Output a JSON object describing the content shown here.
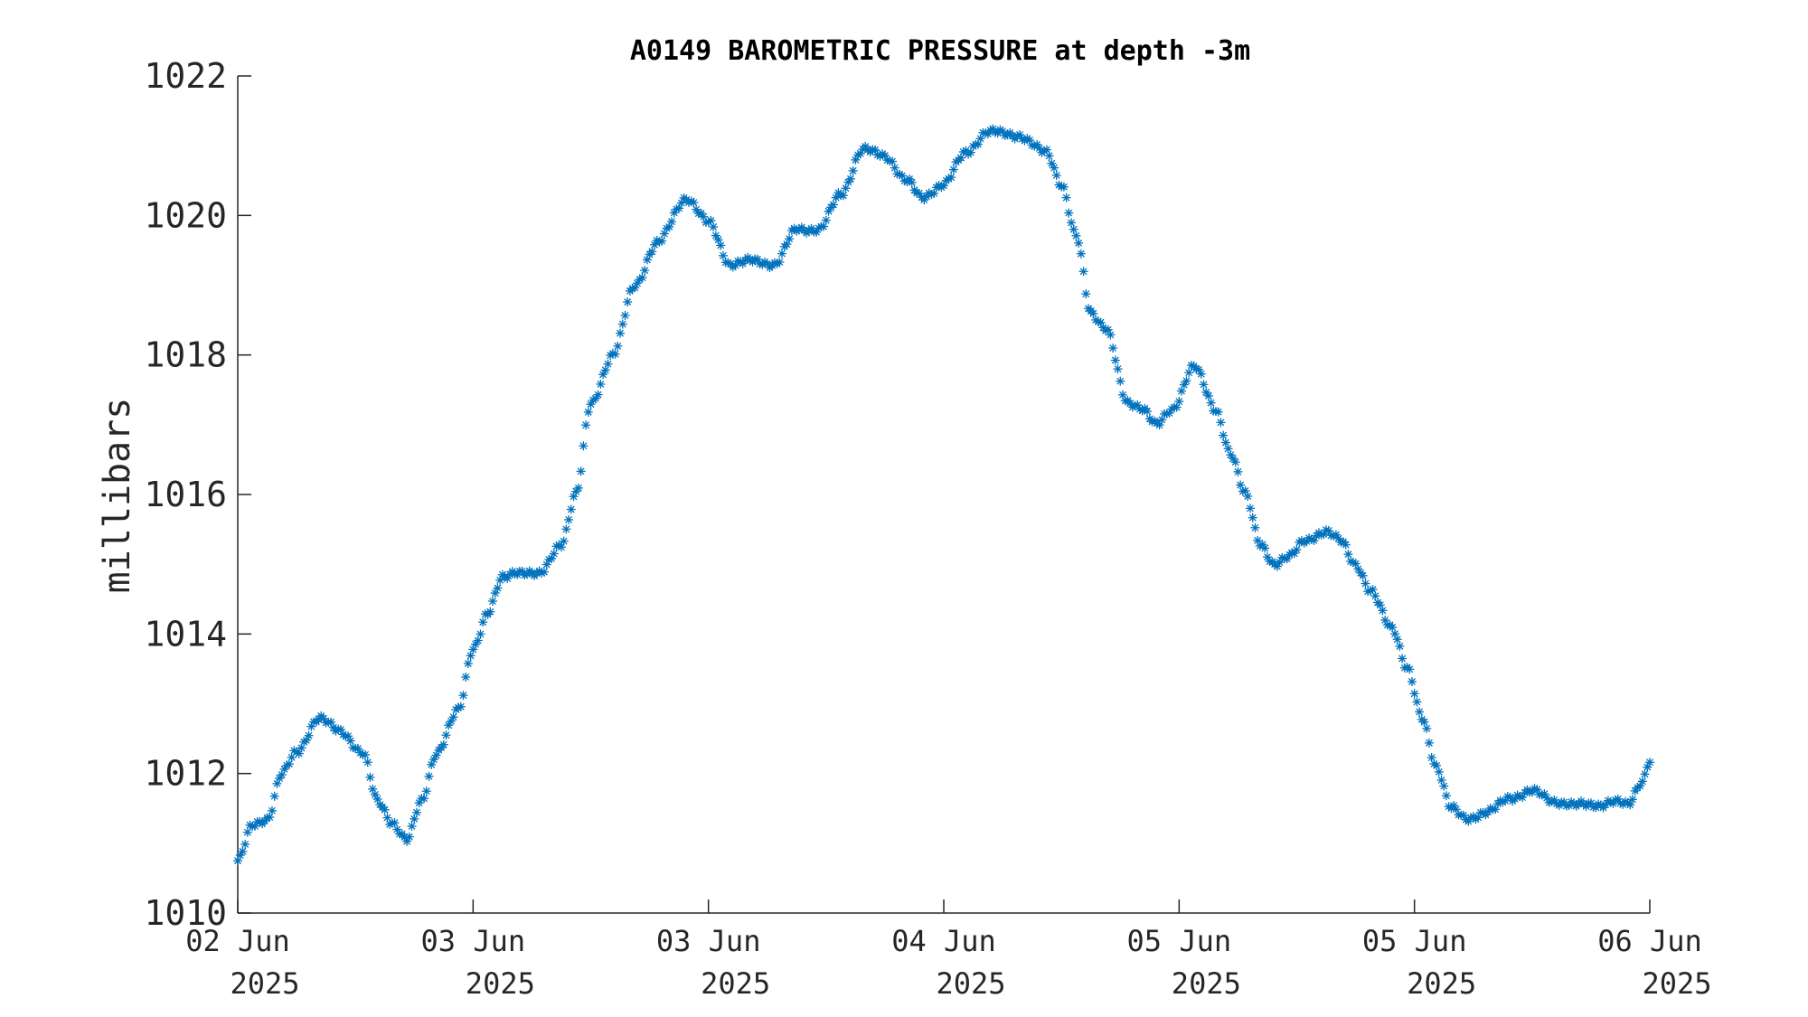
{
  "chart_data": {
    "type": "scatter",
    "title": "A0149 BAROMETRIC PRESSURE at depth -3m",
    "ylabel": "millibars",
    "xlabel": "",
    "marker": "asterisk",
    "color": "#0072BD",
    "xlim": [
      0,
      96
    ],
    "ylim": [
      1010,
      1022
    ],
    "yticks": [
      1010,
      1012,
      1014,
      1016,
      1018,
      1020,
      1022
    ],
    "yticklabels": [
      "1010",
      "1012",
      "1014",
      "1016",
      "1018",
      "1020",
      "1022"
    ],
    "xticks": [
      0,
      16,
      32,
      48,
      64,
      80,
      96
    ],
    "xticklabels": [
      [
        "02 Jun",
        "2025"
      ],
      [
        "03 Jun",
        "2025"
      ],
      [
        "03 Jun",
        "2025"
      ],
      [
        "04 Jun",
        "2025"
      ],
      [
        "05 Jun",
        "2025"
      ],
      [
        "05 Jun",
        "2025"
      ],
      [
        "06 Jun",
        "2025"
      ]
    ],
    "grid": false,
    "anchors": [
      [
        0,
        1010.75
      ],
      [
        1.0,
        1011.25
      ],
      [
        2.0,
        1011.35
      ],
      [
        3.0,
        1012.0
      ],
      [
        4.0,
        1012.3
      ],
      [
        5.5,
        1012.8
      ],
      [
        7.0,
        1012.6
      ],
      [
        8.5,
        1012.3
      ],
      [
        9.5,
        1011.6
      ],
      [
        10.5,
        1011.3
      ],
      [
        11.5,
        1011.05
      ],
      [
        12.5,
        1011.6
      ],
      [
        13.5,
        1012.3
      ],
      [
        15.0,
        1012.9
      ],
      [
        16.0,
        1013.8
      ],
      [
        17.0,
        1014.3
      ],
      [
        18.0,
        1014.8
      ],
      [
        19.0,
        1014.9
      ],
      [
        20.5,
        1014.85
      ],
      [
        22.0,
        1015.3
      ],
      [
        23.0,
        1016.0
      ],
      [
        24.0,
        1017.3
      ],
      [
        25.5,
        1018.0
      ],
      [
        27.0,
        1019.0
      ],
      [
        28.5,
        1019.6
      ],
      [
        30.5,
        1020.25
      ],
      [
        32.0,
        1019.9
      ],
      [
        33.5,
        1019.3
      ],
      [
        35.0,
        1019.35
      ],
      [
        36.5,
        1019.3
      ],
      [
        38.0,
        1019.8
      ],
      [
        39.5,
        1019.8
      ],
      [
        41.0,
        1020.3
      ],
      [
        42.5,
        1020.95
      ],
      [
        44.0,
        1020.85
      ],
      [
        45.5,
        1020.5
      ],
      [
        46.5,
        1020.25
      ],
      [
        48.0,
        1020.45
      ],
      [
        49.5,
        1020.9
      ],
      [
        51.0,
        1021.2
      ],
      [
        53.0,
        1021.15
      ],
      [
        55.0,
        1020.9
      ],
      [
        56.0,
        1020.45
      ],
      [
        57.0,
        1019.7
      ],
      [
        58.0,
        1018.6
      ],
      [
        59.0,
        1018.4
      ],
      [
        60.5,
        1017.3
      ],
      [
        61.5,
        1017.25
      ],
      [
        62.5,
        1017.0
      ],
      [
        63.5,
        1017.2
      ],
      [
        65.0,
        1017.85
      ],
      [
        66.5,
        1017.2
      ],
      [
        67.5,
        1016.6
      ],
      [
        68.5,
        1016.0
      ],
      [
        69.5,
        1015.3
      ],
      [
        70.5,
        1015.0
      ],
      [
        71.5,
        1015.1
      ],
      [
        72.5,
        1015.35
      ],
      [
        74.0,
        1015.45
      ],
      [
        75.0,
        1015.35
      ],
      [
        76.0,
        1015.0
      ],
      [
        77.0,
        1014.6
      ],
      [
        78.5,
        1014.1
      ],
      [
        79.5,
        1013.5
      ],
      [
        80.5,
        1012.8
      ],
      [
        81.5,
        1012.1
      ],
      [
        82.5,
        1011.5
      ],
      [
        83.5,
        1011.35
      ],
      [
        85.0,
        1011.45
      ],
      [
        86.5,
        1011.65
      ],
      [
        88.0,
        1011.75
      ],
      [
        89.5,
        1011.6
      ],
      [
        91.0,
        1011.55
      ],
      [
        92.5,
        1011.55
      ],
      [
        93.5,
        1011.6
      ],
      [
        94.5,
        1011.55
      ],
      [
        95.5,
        1011.9
      ],
      [
        96.0,
        1012.2
      ]
    ]
  }
}
